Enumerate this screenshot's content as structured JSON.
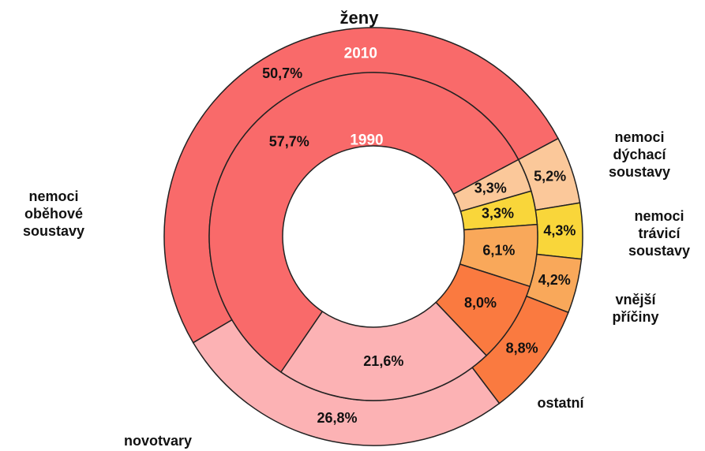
{
  "chart_data": {
    "type": "donut",
    "title": "ženy",
    "categories": [
      "nemoci dýchací soustavy",
      "nemoci trávicí soustavy",
      "vnější příčiny",
      "ostatní",
      "novotvary",
      "nemoci oběhové soustavy"
    ],
    "colors": [
      "#fbc89a",
      "#f9d63a",
      "#f9a85a",
      "#fa7a40",
      "#fcb2b4",
      "#f96a6a"
    ],
    "series": [
      {
        "name": "2010",
        "values": [
          5.2,
          4.3,
          4.2,
          8.8,
          26.8,
          50.7
        ],
        "value_labels": [
          "5,2%",
          "4,3%",
          "4,2%",
          "8,8%",
          "26,8%",
          "50,7%"
        ]
      },
      {
        "name": "1990",
        "values": [
          3.3,
          3.3,
          6.1,
          8.0,
          21.6,
          57.7
        ],
        "value_labels": [
          "3,3%",
          "3,3%",
          "6,1%",
          "8,0%",
          "21,6%",
          "57,7%"
        ]
      }
    ]
  }
}
